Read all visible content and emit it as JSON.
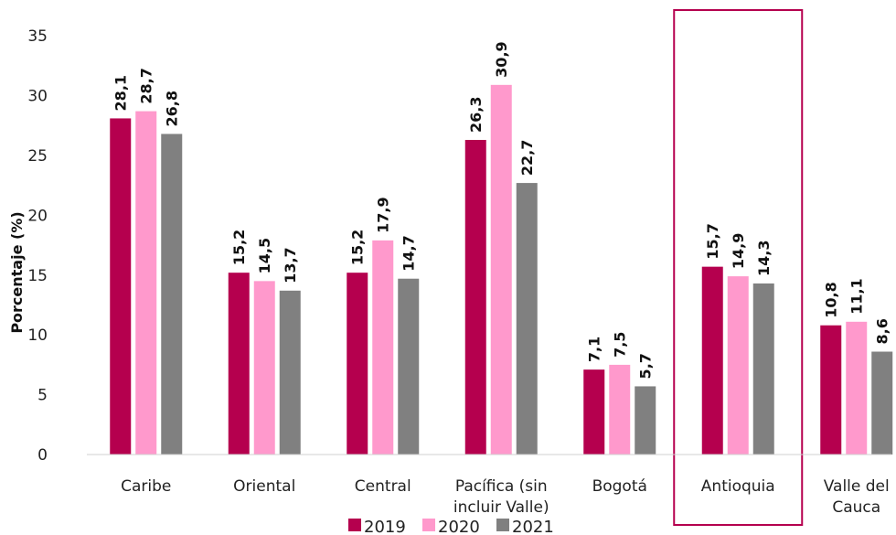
{
  "chart_data": {
    "type": "bar",
    "title": "",
    "xlabel": "",
    "ylabel": "Porcentaje (%)",
    "ylim": [
      0,
      35
    ],
    "yticks": [
      0,
      5,
      10,
      15,
      20,
      25,
      30,
      35
    ],
    "grid": false,
    "legend_position": "bottom",
    "categories": [
      "Caribe",
      "Oriental",
      "Central",
      "Pacífica (sin incluir Valle)",
      "Bogotá",
      "Antioquia",
      "Valle del Cauca"
    ],
    "category_lines": [
      [
        "Caribe"
      ],
      [
        "Oriental"
      ],
      [
        "Central"
      ],
      [
        "Pacífica (sin",
        "incluir Valle)"
      ],
      [
        "Bogotá"
      ],
      [
        "Antioquia"
      ],
      [
        "Valle del",
        "Cauca"
      ]
    ],
    "series": [
      {
        "name": "2019",
        "color": "#B5004E",
        "values": [
          28.1,
          15.2,
          15.2,
          26.3,
          7.1,
          15.7,
          10.8
        ],
        "labels": [
          "28,1",
          "15,2",
          "15,2",
          "26,3",
          "7,1",
          "15,7",
          "10,8"
        ]
      },
      {
        "name": "2020",
        "color": "#FF99CC",
        "values": [
          28.7,
          14.5,
          17.9,
          30.9,
          7.5,
          14.9,
          11.1
        ],
        "labels": [
          "28,7",
          "14,5",
          "17,9",
          "30,9",
          "7,5",
          "14,9",
          "11,1"
        ]
      },
      {
        "name": "2021",
        "color": "#808080",
        "values": [
          26.8,
          13.7,
          14.7,
          22.7,
          5.7,
          14.3,
          8.6
        ],
        "labels": [
          "26,8",
          "13,7",
          "14,7",
          "22,7",
          "5,7",
          "14,3",
          "8,6"
        ]
      }
    ],
    "highlighted_category": "Antioquia",
    "highlight_color": "#B5004E"
  }
}
